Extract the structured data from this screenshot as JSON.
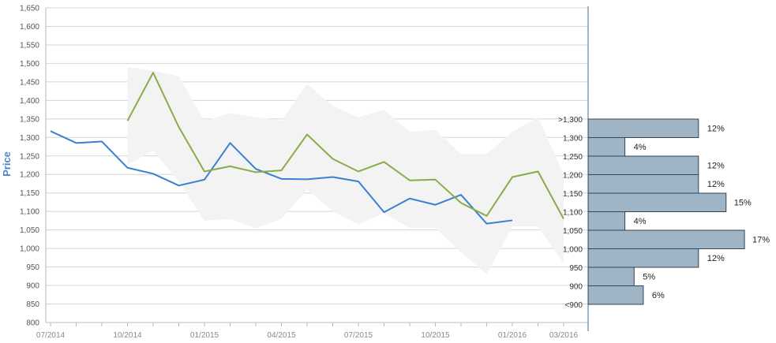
{
  "chart_data": {
    "type": "line",
    "ylabel": "Price",
    "ylim": [
      800,
      1650
    ],
    "yticks": [
      800,
      850,
      900,
      950,
      1000,
      1050,
      1100,
      1150,
      1200,
      1250,
      1300,
      1350,
      1400,
      1450,
      1500,
      1550,
      1600,
      1650
    ],
    "ytick_labels": [
      "800",
      "850",
      "900",
      "950",
      "1,000",
      "1,050",
      "1,100",
      "1,150",
      "1,200",
      "1,250",
      "1,300",
      "1,350",
      "1,400",
      "1,450",
      "1,500",
      "1,550",
      "1,600",
      "1,650"
    ],
    "x_ticks": [
      "07/2014",
      "10/2014",
      "01/2015",
      "04/2015",
      "07/2015",
      "10/2015",
      "01/2016",
      "03/2016"
    ],
    "x": [
      "07/2014",
      "08/2014",
      "09/2014",
      "10/2014",
      "11/2014",
      "12/2014",
      "01/2015",
      "02/2015",
      "03/2015",
      "04/2015",
      "05/2015",
      "06/2015",
      "07/2015",
      "08/2015",
      "09/2015",
      "10/2015",
      "11/2015",
      "12/2015",
      "01/2016",
      "02/2016",
      "03/2016"
    ],
    "grid": true,
    "series": [
      {
        "color": "#3a80d0",
        "values": [
          1317,
          1285,
          1289,
          1218,
          1202,
          1170,
          1186,
          1285,
          1215,
          1188,
          1187,
          1193,
          1181,
          1098,
          1135,
          1118,
          1145,
          1067,
          1076,
          null,
          null
        ]
      },
      {
        "color": "#8aac48",
        "values": [
          null,
          null,
          null,
          1345,
          1475,
          1328,
          1208,
          1222,
          1206,
          1211,
          1308,
          1242,
          1208,
          1234,
          1184,
          1186,
          1123,
          1088,
          1193,
          1208,
          1080
        ]
      }
    ],
    "band": {
      "color": "#f3f3f3",
      "upper": [
        null,
        null,
        null,
        1490,
        1480,
        1465,
        1345,
        1365,
        1355,
        1345,
        1445,
        1385,
        1355,
        1375,
        1315,
        1320,
        1255,
        1255,
        1315,
        1355,
        1200
      ],
      "lower": [
        null,
        null,
        null,
        1225,
        1265,
        1180,
        1075,
        1080,
        1055,
        1080,
        1160,
        1100,
        1065,
        1095,
        1055,
        1055,
        990,
        930,
        1060,
        1060,
        960
      ]
    },
    "histogram": {
      "color": "#9fb5c5",
      "edge": "#334455",
      "categories": [
        ">1,300",
        "1,300",
        "1,250",
        "1,200",
        "1,150",
        "1,100",
        "1,050",
        "1,000",
        "950",
        "900",
        "<900"
      ],
      "percent": [
        12,
        4,
        12,
        12,
        15,
        4,
        17,
        12,
        5,
        6
      ],
      "labels": [
        "12%",
        "4%",
        "12%",
        "12%",
        "15%",
        "4%",
        "17%",
        "12%",
        "5%",
        "6%"
      ]
    }
  }
}
